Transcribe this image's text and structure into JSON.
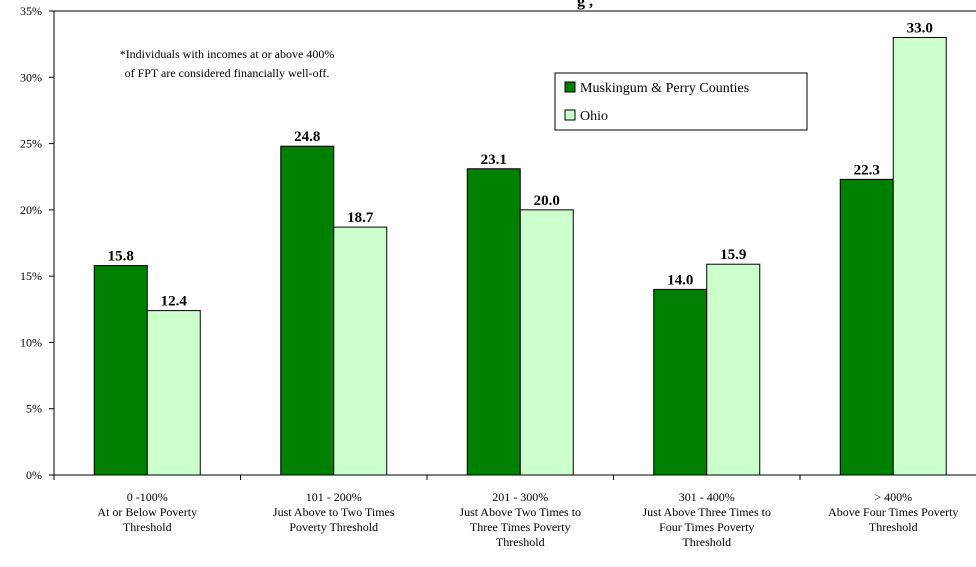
{
  "chart_data": {
    "type": "bar",
    "title": "",
    "xlabel": "",
    "ylabel": "",
    "ylim": [
      0,
      35
    ],
    "ytick_step": 5,
    "ytick_suffix": "%",
    "grid": false,
    "legend_position": "top-right",
    "categories": [
      [
        "0 -100%",
        "At or Below Poverty",
        "Threshold"
      ],
      [
        "101 - 200%",
        "Just Above to Two Times",
        "Poverty Threshold"
      ],
      [
        "201 - 300%",
        "Just Above Two Times to",
        "Three Times Poverty",
        "Threshold"
      ],
      [
        "301 - 400%",
        "Just Above Three Times to",
        "Four Times Poverty",
        "Threshold"
      ],
      [
        "> 400%",
        "Above Four Times Poverty",
        "Threshold"
      ]
    ],
    "series": [
      {
        "name": "Muskingum & Perry Counties",
        "color": "#008000",
        "values": [
          15.8,
          24.8,
          23.1,
          14.0,
          22.3
        ]
      },
      {
        "name": "Ohio",
        "color": "#ccffcc",
        "values": [
          12.4,
          18.7,
          20.0,
          15.9,
          33.0
        ]
      }
    ],
    "annotation": [
      "*Individuals with incomes at or above 400%",
      "of FPT are considered financially well-off."
    ]
  }
}
